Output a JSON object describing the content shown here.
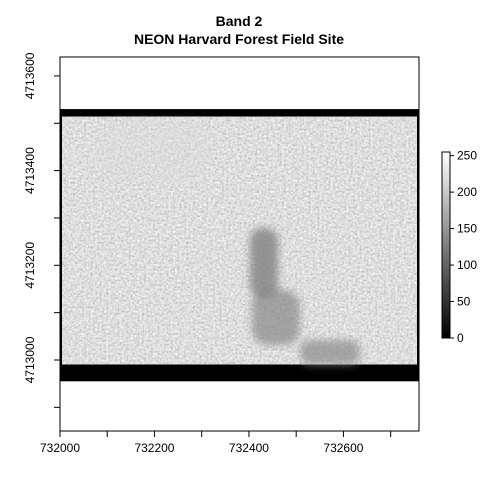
{
  "chart_data": {
    "type": "heatmap",
    "title": "Band 2",
    "subtitle": "NEON Harvard Forest Field Site",
    "xlabel": "",
    "ylabel": "",
    "xlim": [
      732000,
      732760
    ],
    "ylim": [
      4712850,
      4713640
    ],
    "x_ticks": [
      732000,
      732200,
      732400,
      732600
    ],
    "x_tick_labels": [
      "732000",
      "732200",
      "732400",
      "732600"
    ],
    "y_ticks": [
      4713000,
      4713200,
      4713400,
      4713600
    ],
    "y_tick_labels": [
      "4713000",
      "4713200",
      "4713400",
      "4713600"
    ],
    "raster_extent": {
      "xmin": 732000,
      "xmax": 732760,
      "ymin": 4712955,
      "ymax": 4713530,
      "data_xmin": 732005,
      "data_xmax": 732755,
      "data_ymin": 4712985,
      "data_ymax": 4713520
    },
    "nodata_value": 0,
    "typical_value_range": [
      140,
      200
    ],
    "dark_region_value_range": [
      90,
      120
    ],
    "grid": false,
    "colorbar": {
      "palette": "grayscale",
      "min": 0,
      "max": 255,
      "ticks": [
        0,
        50,
        100,
        150,
        200,
        250
      ],
      "tick_labels": [
        "0",
        "50",
        "100",
        "150",
        "200",
        "250"
      ],
      "position": "right"
    }
  }
}
